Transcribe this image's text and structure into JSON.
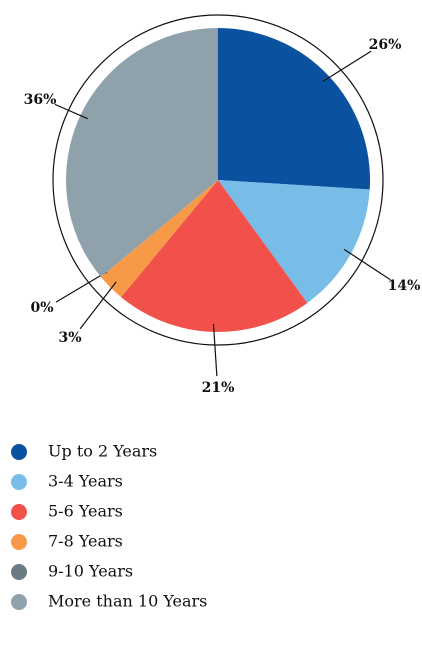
{
  "chart_data": {
    "type": "pie",
    "categories": [
      "Up to 2 Years",
      "3-4 Years",
      "5-6 Years",
      "7-8 Years",
      "9-10 Years",
      "More than 10 Years"
    ],
    "values": [
      26,
      14,
      21,
      3,
      0,
      36
    ],
    "value_labels": [
      "26%",
      "14%",
      "21%",
      "3%",
      "0%",
      "36%"
    ],
    "colors": [
      "#0a52a0",
      "#78bde8",
      "#f2504b",
      "#f79a48",
      "#6b7b84",
      "#8fa1ab"
    ]
  }
}
